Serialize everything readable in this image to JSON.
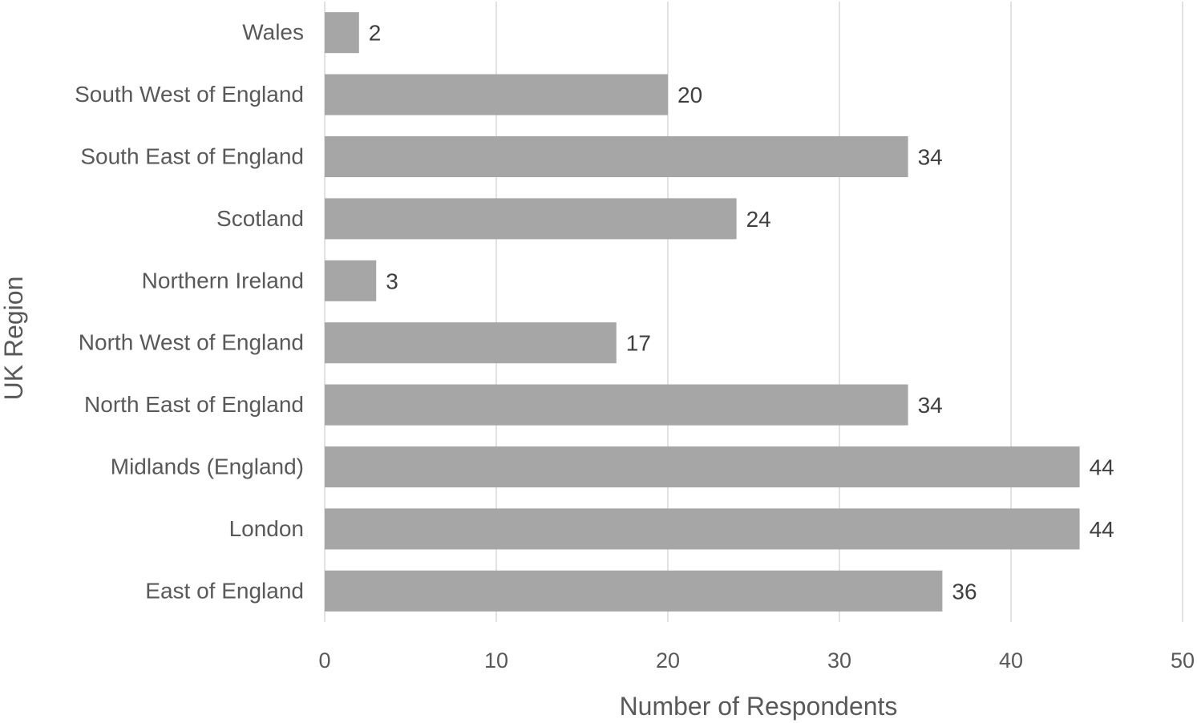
{
  "chart_data": {
    "type": "bar",
    "orientation": "horizontal",
    "title": "",
    "xlabel": "Number of Respondents",
    "ylabel": "UK Region",
    "categories": [
      "Wales",
      "South West of England",
      "South East of England",
      "Scotland",
      "Northern Ireland",
      "North West of England",
      "North East of England",
      "Midlands (England)",
      "London",
      "East of England"
    ],
    "values": [
      2,
      20,
      34,
      24,
      3,
      17,
      34,
      44,
      44,
      36
    ],
    "xlim": [
      0,
      50
    ],
    "xticks": [
      "0",
      "10",
      "20",
      "30",
      "40",
      "50"
    ],
    "grid": "vertical",
    "data_labels": true,
    "legend": "none",
    "colors": {
      "bar": "#a6a6a6",
      "grid": "#d9d9d9",
      "text": "#595959",
      "value_text": "#404040"
    }
  }
}
